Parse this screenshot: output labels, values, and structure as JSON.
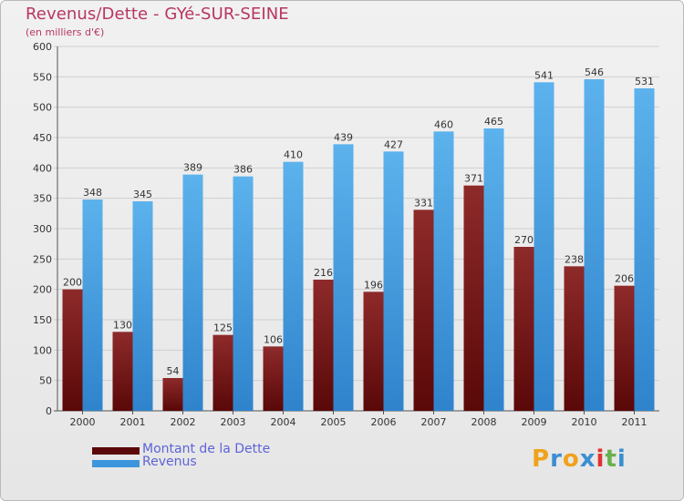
{
  "title": "Revenus/Dette - GYé-SUR-SEINE",
  "subtitle": "(en milliers d'€)",
  "brand": {
    "name": "Proxiti",
    "letters": [
      "P",
      "r",
      "o",
      "x",
      "i",
      "t",
      "i"
    ],
    "colors": [
      "#f0a21c",
      "#3b8fd1",
      "#f0a21c",
      "#3b8fd1",
      "#e2322f",
      "#6ab04c",
      "#3b8fd1"
    ]
  },
  "colors": {
    "dette": "#7a1d1d",
    "revenus": "#4da6e6",
    "title": "#b8365f",
    "legend_text": "#5e63d6"
  },
  "chart_data": {
    "type": "bar",
    "categories": [
      "2000",
      "2001",
      "2002",
      "2003",
      "2004",
      "2005",
      "2006",
      "2007",
      "2008",
      "2009",
      "2010",
      "2011"
    ],
    "series": [
      {
        "name": "Montant de la Dette",
        "values": [
          200,
          130,
          54,
          125,
          106,
          216,
          196,
          331,
          371,
          270,
          238,
          206
        ]
      },
      {
        "name": "Revenus",
        "values": [
          348,
          345,
          389,
          386,
          410,
          439,
          427,
          460,
          465,
          541,
          546,
          531
        ]
      }
    ],
    "ylim": [
      0,
      600
    ],
    "yticks": [
      0,
      50,
      100,
      150,
      200,
      250,
      300,
      350,
      400,
      450,
      500,
      550,
      600
    ],
    "grid": true,
    "legend": "bottom-left"
  }
}
